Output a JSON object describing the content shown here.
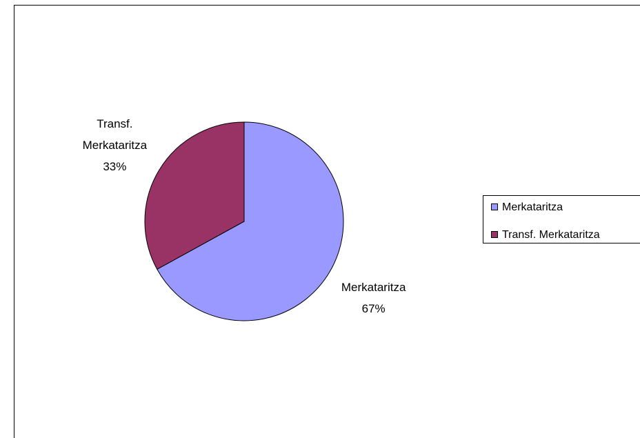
{
  "chart_data": {
    "type": "pie",
    "categories": [
      "Merkataritza",
      "Transf. Merkataritza"
    ],
    "values": [
      67,
      33
    ],
    "value_labels": [
      "67%",
      "33%"
    ],
    "colors": [
      "#9999ff",
      "#993366"
    ],
    "legend": "right"
  }
}
